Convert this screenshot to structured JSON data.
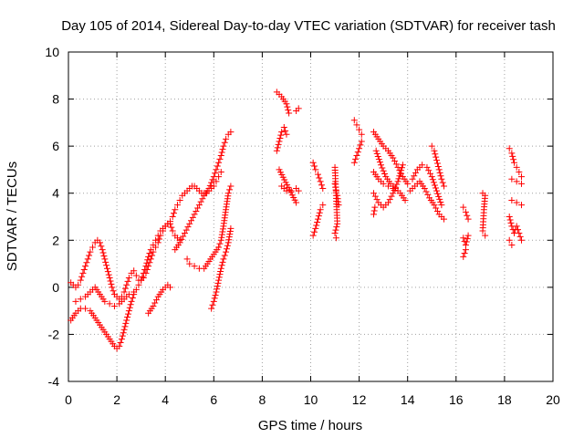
{
  "chart_data": {
    "type": "scatter",
    "title": "Day 105 of 2014, Sidereal Day-to-day VTEC variation (SDTVAR) for receiver tash",
    "xlabel": "GPS time / hours",
    "ylabel": "SDTVAR / TECUs",
    "xlim": [
      0,
      20
    ],
    "ylim": [
      -4,
      10
    ],
    "xticks": [
      0,
      2,
      4,
      6,
      8,
      10,
      12,
      14,
      16,
      18,
      20
    ],
    "yticks": [
      -4,
      -2,
      0,
      2,
      4,
      6,
      8,
      10
    ],
    "grid": true,
    "marker": "+",
    "color": "#ff0000",
    "tracks": [
      [
        [
          0.1,
          -1.4
        ],
        [
          0.3,
          -1.1
        ],
        [
          0.5,
          -0.9
        ],
        [
          0.7,
          -0.9
        ],
        [
          0.9,
          -1.0
        ],
        [
          1.1,
          -1.3
        ],
        [
          1.3,
          -1.6
        ],
        [
          1.5,
          -1.9
        ],
        [
          1.7,
          -2.2
        ],
        [
          1.9,
          -2.5
        ],
        [
          2.0,
          -2.6
        ],
        [
          2.1,
          -2.5
        ],
        [
          2.2,
          -2.2
        ],
        [
          2.3,
          -1.8
        ],
        [
          2.4,
          -1.4
        ],
        [
          2.5,
          -1.0
        ],
        [
          2.6,
          -0.6
        ],
        [
          2.7,
          -0.3
        ],
        [
          2.8,
          -0.1
        ],
        [
          2.9,
          0.1
        ],
        [
          3.0,
          0.3
        ],
        [
          3.1,
          0.6
        ],
        [
          3.2,
          0.9
        ],
        [
          3.3,
          1.3
        ],
        [
          3.4,
          1.6
        ],
        [
          3.5,
          1.8
        ],
        [
          3.6,
          2.0
        ],
        [
          3.7,
          2.2
        ],
        [
          3.8,
          2.4
        ],
        [
          3.9,
          2.5
        ],
        [
          4.0,
          2.6
        ],
        [
          4.1,
          2.7
        ],
        [
          4.2,
          2.7
        ],
        [
          4.3,
          2.4
        ],
        [
          4.4,
          2.2
        ],
        [
          4.5,
          2.1
        ],
        [
          4.6,
          2.0
        ]
      ],
      [
        [
          0.1,
          0.2
        ],
        [
          0.2,
          0.1
        ],
        [
          0.3,
          0.0
        ],
        [
          0.4,
          0.1
        ],
        [
          0.5,
          0.3
        ],
        [
          0.6,
          0.6
        ],
        [
          0.7,
          0.9
        ],
        [
          0.8,
          1.2
        ],
        [
          0.9,
          1.5
        ],
        [
          1.0,
          1.7
        ],
        [
          1.1,
          1.9
        ],
        [
          1.2,
          2.0
        ],
        [
          1.3,
          1.9
        ],
        [
          1.4,
          1.6
        ],
        [
          1.5,
          1.2
        ],
        [
          1.6,
          0.8
        ],
        [
          1.7,
          0.4
        ],
        [
          1.8,
          0.0
        ],
        [
          1.9,
          -0.3
        ],
        [
          2.0,
          -0.4
        ],
        [
          2.1,
          -0.5
        ],
        [
          2.2,
          -0.4
        ],
        [
          2.3,
          -0.2
        ],
        [
          2.4,
          0.1
        ],
        [
          2.5,
          0.4
        ],
        [
          2.6,
          0.6
        ],
        [
          2.7,
          0.7
        ],
        [
          2.8,
          0.5
        ],
        [
          2.9,
          0.3
        ],
        [
          3.0,
          0.3
        ],
        [
          3.1,
          0.4
        ],
        [
          3.2,
          0.6
        ],
        [
          3.3,
          0.9
        ],
        [
          3.4,
          1.2
        ],
        [
          3.5,
          1.5
        ],
        [
          3.6,
          1.7
        ],
        [
          3.7,
          1.9
        ],
        [
          3.8,
          2.2
        ],
        [
          3.9,
          2.4
        ],
        [
          4.0,
          2.6
        ],
        [
          4.1,
          2.7
        ],
        [
          4.2,
          2.8
        ],
        [
          4.3,
          3.0
        ],
        [
          4.4,
          3.3
        ],
        [
          4.5,
          3.5
        ],
        [
          4.6,
          3.7
        ],
        [
          4.7,
          3.9
        ],
        [
          4.8,
          4.0
        ],
        [
          4.9,
          4.1
        ],
        [
          5.0,
          4.2
        ],
        [
          5.1,
          4.3
        ],
        [
          5.2,
          4.3
        ],
        [
          5.3,
          4.2
        ],
        [
          5.4,
          4.1
        ],
        [
          5.5,
          4.0
        ],
        [
          5.6,
          4.0
        ],
        [
          5.7,
          4.0
        ],
        [
          5.8,
          4.1
        ],
        [
          5.9,
          4.2
        ],
        [
          6.0,
          4.3
        ],
        [
          6.1,
          4.5
        ],
        [
          6.2,
          4.7
        ],
        [
          6.3,
          4.9
        ]
      ],
      [
        [
          0.3,
          -0.6
        ],
        [
          0.5,
          -0.5
        ],
        [
          0.7,
          -0.4
        ],
        [
          0.9,
          -0.2
        ],
        [
          1.1,
          0.0
        ],
        [
          1.3,
          -0.3
        ],
        [
          1.5,
          -0.6
        ],
        [
          1.7,
          -0.7
        ],
        [
          1.9,
          -0.8
        ],
        [
          2.1,
          -0.7
        ],
        [
          2.3,
          -0.5
        ],
        [
          2.5,
          -0.3
        ],
        [
          2.7,
          -0.2
        ]
      ],
      [
        [
          3.3,
          -1.1
        ],
        [
          3.5,
          -0.8
        ],
        [
          3.7,
          -0.4
        ],
        [
          3.9,
          -0.1
        ],
        [
          4.1,
          0.1
        ],
        [
          4.2,
          0.0
        ]
      ],
      [
        [
          4.4,
          1.6
        ],
        [
          4.6,
          1.9
        ],
        [
          4.8,
          2.3
        ],
        [
          5.0,
          2.7
        ],
        [
          5.2,
          3.1
        ],
        [
          5.4,
          3.5
        ],
        [
          5.6,
          3.9
        ],
        [
          5.8,
          4.2
        ],
        [
          6.0,
          4.7
        ],
        [
          6.1,
          5.0
        ],
        [
          6.2,
          5.3
        ],
        [
          6.3,
          5.6
        ],
        [
          6.4,
          6.0
        ],
        [
          6.5,
          6.3
        ],
        [
          6.6,
          6.5
        ],
        [
          6.7,
          6.6
        ]
      ],
      [
        [
          4.9,
          1.2
        ],
        [
          5.0,
          1.0
        ],
        [
          5.2,
          0.9
        ],
        [
          5.4,
          0.8
        ],
        [
          5.6,
          0.8
        ],
        [
          5.8,
          1.1
        ],
        [
          6.0,
          1.4
        ],
        [
          6.2,
          1.7
        ],
        [
          6.3,
          2.0
        ],
        [
          6.4,
          2.6
        ],
        [
          6.5,
          3.3
        ],
        [
          6.6,
          4.0
        ],
        [
          6.7,
          4.3
        ]
      ],
      [
        [
          5.9,
          -0.9
        ],
        [
          6.0,
          -0.6
        ],
        [
          6.1,
          -0.2
        ],
        [
          6.2,
          0.3
        ],
        [
          6.3,
          0.8
        ],
        [
          6.4,
          1.2
        ],
        [
          6.5,
          1.5
        ],
        [
          6.6,
          1.9
        ],
        [
          6.7,
          2.5
        ]
      ],
      [
        [
          8.6,
          8.3
        ],
        [
          8.8,
          8.1
        ],
        [
          9.0,
          7.8
        ],
        [
          9.1,
          7.4
        ]
      ],
      [
        [
          8.6,
          5.8
        ],
        [
          8.7,
          6.2
        ],
        [
          8.8,
          6.6
        ],
        [
          8.9,
          6.8
        ],
        [
          9.0,
          6.5
        ]
      ],
      [
        [
          8.8,
          4.3
        ],
        [
          9.0,
          4.1
        ],
        [
          9.2,
          4.1
        ],
        [
          9.4,
          4.2
        ],
        [
          9.5,
          4.1
        ]
      ],
      [
        [
          9.4,
          7.5
        ],
        [
          9.5,
          7.6
        ]
      ],
      [
        [
          9.4,
          3.6
        ],
        [
          8.7,
          5.0
        ]
      ],
      [
        [
          10.1,
          5.3
        ],
        [
          10.2,
          5.0
        ],
        [
          10.3,
          4.8
        ],
        [
          10.4,
          4.5
        ],
        [
          10.5,
          4.2
        ]
      ],
      [
        [
          10.1,
          2.2
        ],
        [
          10.2,
          2.5
        ],
        [
          10.3,
          2.9
        ],
        [
          10.4,
          3.3
        ],
        [
          10.5,
          3.5
        ]
      ],
      [
        [
          11.0,
          4.4
        ],
        [
          11.05,
          4.1
        ],
        [
          11.1,
          3.9
        ],
        [
          11.15,
          3.5
        ]
      ],
      [
        [
          11.0,
          5.1
        ],
        [
          11.1,
          2.7
        ],
        [
          11.0,
          2.3
        ],
        [
          11.05,
          2.1
        ]
      ],
      [
        [
          11.8,
          7.1
        ],
        [
          11.9,
          6.9
        ],
        [
          12.0,
          6.7
        ],
        [
          12.1,
          6.5
        ]
      ],
      [
        [
          11.8,
          5.3
        ],
        [
          11.9,
          5.6
        ],
        [
          12.0,
          5.9
        ],
        [
          12.1,
          6.2
        ]
      ],
      [
        [
          12.6,
          6.6
        ],
        [
          12.8,
          6.3
        ],
        [
          13.0,
          6.0
        ],
        [
          13.2,
          5.8
        ],
        [
          13.4,
          5.5
        ],
        [
          13.6,
          5.1
        ],
        [
          13.8,
          4.7
        ],
        [
          14.0,
          4.4
        ]
      ],
      [
        [
          12.7,
          5.8
        ],
        [
          12.9,
          5.2
        ],
        [
          13.1,
          4.7
        ],
        [
          13.3,
          4.4
        ],
        [
          13.5,
          4.2
        ],
        [
          13.7,
          4.0
        ],
        [
          13.9,
          3.7
        ]
      ],
      [
        [
          12.6,
          4.9
        ],
        [
          12.8,
          4.6
        ],
        [
          13.0,
          4.4
        ],
        [
          13.2,
          4.3
        ],
        [
          13.4,
          4.2
        ]
      ],
      [
        [
          12.6,
          4.0
        ],
        [
          12.8,
          3.6
        ],
        [
          13.0,
          3.4
        ],
        [
          13.2,
          3.6
        ],
        [
          13.4,
          4.0
        ],
        [
          13.6,
          4.5
        ],
        [
          13.8,
          5.2
        ]
      ],
      [
        [
          12.6,
          3.1
        ],
        [
          12.65,
          3.4
        ]
      ],
      [
        [
          14.2,
          4.6
        ],
        [
          14.4,
          5.0
        ],
        [
          14.6,
          5.2
        ],
        [
          14.8,
          5.1
        ],
        [
          15.0,
          4.7
        ],
        [
          15.2,
          4.1
        ],
        [
          15.4,
          3.5
        ]
      ],
      [
        [
          14.1,
          4.1
        ],
        [
          14.3,
          4.3
        ],
        [
          14.5,
          4.5
        ],
        [
          14.7,
          4.2
        ],
        [
          14.9,
          3.8
        ],
        [
          15.1,
          3.5
        ],
        [
          15.3,
          3.1
        ],
        [
          15.5,
          2.9
        ]
      ],
      [
        [
          15.0,
          6.0
        ],
        [
          15.1,
          5.8
        ],
        [
          15.2,
          5.4
        ],
        [
          15.3,
          5.0
        ],
        [
          15.4,
          4.6
        ],
        [
          15.5,
          4.3
        ]
      ],
      [
        [
          16.3,
          3.4
        ],
        [
          16.4,
          3.2
        ],
        [
          16.5,
          2.9
        ]
      ],
      [
        [
          16.3,
          2.1
        ],
        [
          16.4,
          1.8
        ],
        [
          16.5,
          2.2
        ]
      ],
      [
        [
          16.3,
          1.3
        ],
        [
          16.4,
          1.6
        ]
      ],
      [
        [
          17.1,
          4.0
        ],
        [
          17.2,
          3.9
        ],
        [
          17.15,
          3.3
        ],
        [
          17.1,
          2.4
        ],
        [
          17.2,
          2.2
        ]
      ],
      [
        [
          18.2,
          5.9
        ],
        [
          18.3,
          5.7
        ],
        [
          18.4,
          5.3
        ],
        [
          18.5,
          5.1
        ],
        [
          18.6,
          4.9
        ],
        [
          18.7,
          4.7
        ]
      ],
      [
        [
          18.3,
          4.6
        ],
        [
          18.5,
          4.5
        ],
        [
          18.7,
          4.4
        ]
      ],
      [
        [
          18.3,
          3.7
        ],
        [
          18.5,
          3.6
        ],
        [
          18.7,
          3.5
        ]
      ],
      [
        [
          18.2,
          3.0
        ],
        [
          18.3,
          2.6
        ],
        [
          18.4,
          2.3
        ],
        [
          18.5,
          2.6
        ],
        [
          18.6,
          2.3
        ],
        [
          18.7,
          2.0
        ]
      ],
      [
        [
          18.2,
          2.0
        ],
        [
          18.3,
          1.8
        ]
      ]
    ]
  }
}
